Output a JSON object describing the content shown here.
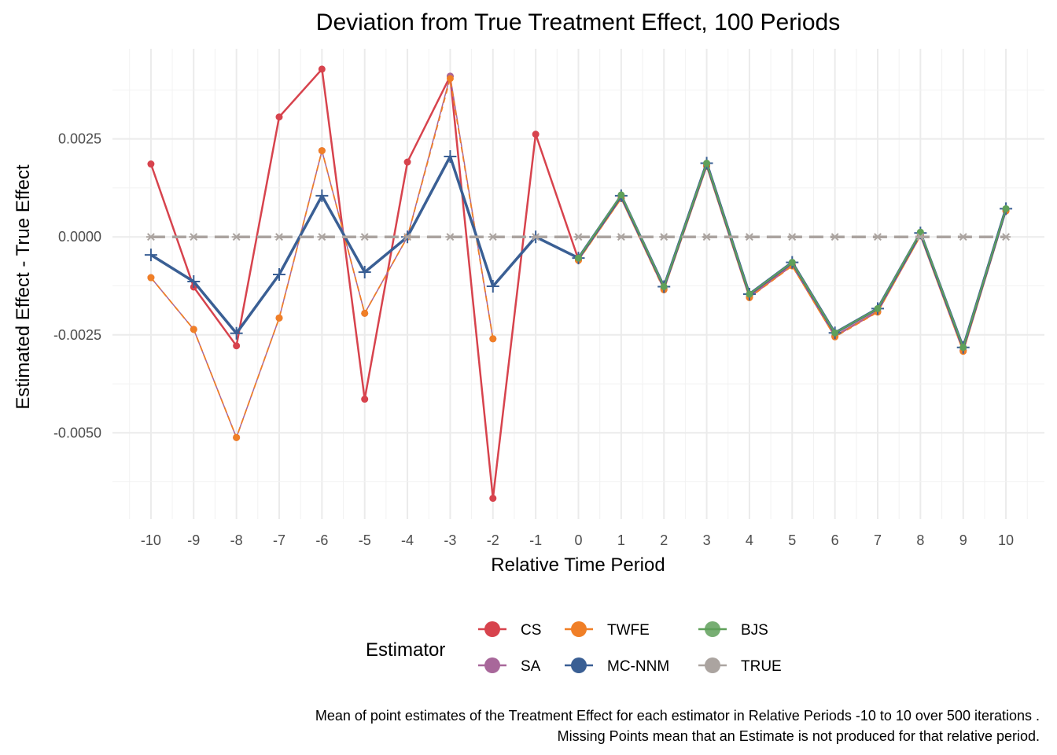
{
  "chart_data": {
    "type": "line",
    "title": "Deviation from True Treatment Effect, 100 Periods",
    "xlabel": "Relative Time Period",
    "ylabel": "Estimated Effect - True Effect",
    "x": [
      -10,
      -9,
      -8,
      -7,
      -6,
      -5,
      -4,
      -3,
      -2,
      -1,
      0,
      1,
      2,
      3,
      4,
      5,
      6,
      7,
      8,
      9,
      10
    ],
    "x_tick_labels": [
      "-10",
      "-9",
      "-8",
      "-7",
      "-6",
      "-5",
      "-4",
      "-3",
      "-2",
      "-1",
      "0",
      "1",
      "2",
      "3",
      "4",
      "5",
      "6",
      "7",
      "8",
      "9",
      "10"
    ],
    "y_ticks": [
      0.0025,
      0.0,
      -0.0025,
      -0.005
    ],
    "y_tick_labels": [
      "0.0025",
      "0.0000",
      "-0.0025",
      "-0.0050"
    ],
    "xlim": [
      -10.9,
      10.9
    ],
    "ylim": [
      -0.0072,
      0.0048
    ],
    "grid": true,
    "legend": {
      "title": "Estimator",
      "position": "bottom",
      "entries": [
        "CS",
        "TWFE",
        "BJS",
        "SA",
        "MC-NNM",
        "TRUE"
      ]
    },
    "series": [
      {
        "name": "CS",
        "color": "#d7434d",
        "marker": "circle",
        "dash": "solid",
        "width": 2.5,
        "values": [
          0.00186,
          -0.00128,
          -0.00278,
          0.00306,
          0.00428,
          -0.00414,
          0.00191,
          0.0041,
          -0.00667,
          0.00262,
          -0.00058,
          0.001,
          -0.00132,
          0.00182,
          -0.00153,
          -0.00072,
          -0.00253,
          -0.0019,
          5e-05,
          -0.0029,
          0.00068
        ]
      },
      {
        "name": "SA",
        "color": "#a8679a",
        "marker": "circle",
        "dash": "solid",
        "width": 1.5,
        "values": [
          -0.00104,
          -0.00236,
          -0.00512,
          -0.00207,
          0.0022,
          -0.00195,
          0.0,
          0.0041,
          -0.0026,
          null,
          -0.00058,
          0.001,
          -0.00132,
          0.00182,
          -0.00153,
          -0.00072,
          -0.00253,
          -0.0019,
          5e-05,
          -0.0029,
          0.00068
        ]
      },
      {
        "name": "TWFE",
        "color": "#f07f27",
        "marker": "circle",
        "dash": "dashed",
        "width": 1.8,
        "values": [
          -0.00104,
          -0.00236,
          -0.00512,
          -0.00207,
          0.0022,
          -0.00195,
          0.0,
          0.00404,
          -0.0026,
          null,
          -0.0006,
          0.00098,
          -0.00135,
          0.0018,
          -0.00155,
          -0.00074,
          -0.00255,
          -0.00192,
          3e-05,
          -0.00292,
          0.00066
        ]
      },
      {
        "name": "MC-NNM",
        "color": "#3a5f94",
        "marker": "plus",
        "dash": "solid",
        "width": 3.5,
        "values": [
          -0.00046,
          -0.00114,
          -0.00246,
          -0.00096,
          0.00105,
          -0.0009,
          0.0,
          0.00205,
          -0.00126,
          0.0,
          -0.00054,
          0.00105,
          -0.00127,
          0.00188,
          -0.00146,
          -0.00065,
          -0.00245,
          -0.00183,
          0.0001,
          -0.00282,
          0.00072
        ]
      },
      {
        "name": "BJS",
        "color": "#5fa05a",
        "marker": "circle",
        "dash": "solid",
        "width": 2.0,
        "values": [
          null,
          null,
          null,
          null,
          null,
          null,
          null,
          null,
          null,
          null,
          -0.00054,
          0.00107,
          -0.00127,
          0.00188,
          -0.00146,
          -0.00065,
          -0.00245,
          -0.00183,
          0.00012,
          -0.00282,
          0.00072
        ]
      },
      {
        "name": "TRUE",
        "color": "#aba4a0",
        "marker": "asterisk",
        "dash": "longdash",
        "width": 3.5,
        "values": [
          0,
          0,
          0,
          0,
          0,
          0,
          0,
          0,
          0,
          0,
          0,
          0,
          0,
          0,
          0,
          0,
          0,
          0,
          0,
          0,
          0
        ]
      }
    ],
    "caption": [
      "Mean of point estimates of the Treatment Effect for each estimator in Relative Periods -10 to 10 over 500 iterations .",
      "Missing Points mean that an Estimate is not produced for that relative period."
    ]
  }
}
